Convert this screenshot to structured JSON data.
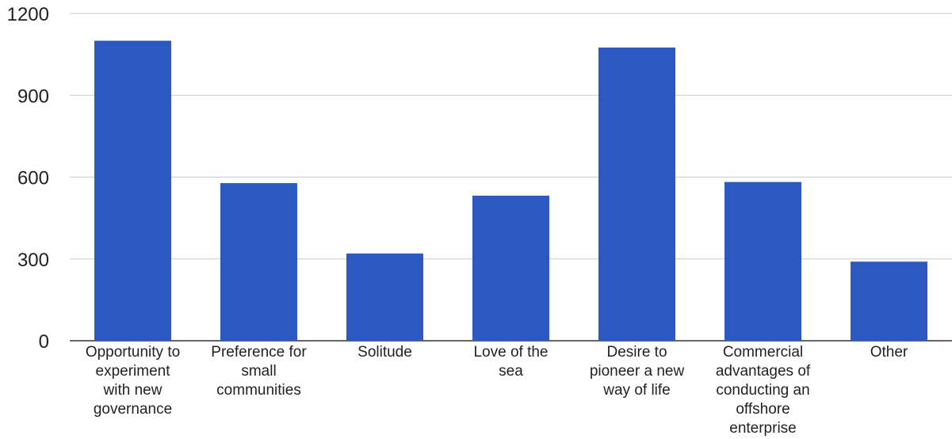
{
  "chart_data": {
    "type": "bar",
    "title": "",
    "xlabel": "",
    "ylabel": "",
    "ylim": [
      0,
      1200
    ],
    "yticks": [
      0,
      300,
      600,
      900,
      1200
    ],
    "grid": true,
    "legend": "none",
    "bar_color": "#2B58C1",
    "grid_color": "#CCCCCC",
    "categories": [
      "Opportunity to experiment with new governance",
      "Preference for small communities",
      "Solitude",
      "Love of the sea",
      "Desire to pioneer a new way of life",
      "Commercial advantages of conducting an offshore enterprise",
      "Other"
    ],
    "category_lines": [
      [
        "Opportunity to",
        "experiment",
        "with new",
        "governance"
      ],
      [
        "Preference for",
        "small",
        "communities"
      ],
      [
        "Solitude"
      ],
      [
        "Love of the",
        "sea"
      ],
      [
        "Desire to",
        "pioneer a new",
        "way of life"
      ],
      [
        "Commercial",
        "advantages of",
        "conducting an",
        "offshore",
        "enterprise"
      ],
      [
        "Other"
      ]
    ],
    "values": [
      1100,
      578,
      320,
      532,
      1075,
      582,
      290
    ]
  }
}
